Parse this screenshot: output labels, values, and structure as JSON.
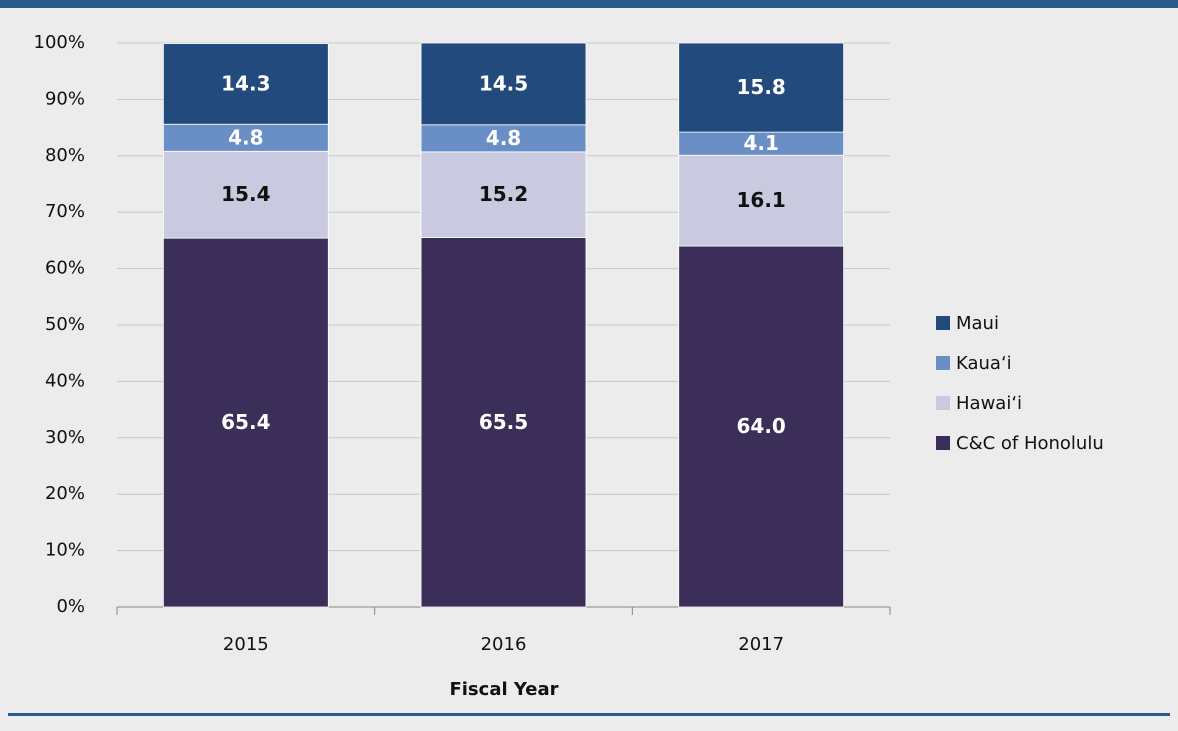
{
  "chart_data": {
    "type": "stacked_bar",
    "x_label": "Fiscal Year",
    "categories": [
      "2015",
      "2016",
      "2017"
    ],
    "series": [
      {
        "name": "C&C of Honolulu",
        "color": "#3b2f5a",
        "values": [
          65.4,
          65.5,
          64.0
        ],
        "value_labels": [
          "65.4",
          "65.5",
          "64.0"
        ]
      },
      {
        "name": "Hawai‘i",
        "color": "#c9cadf",
        "values": [
          15.4,
          15.2,
          16.1
        ]
      },
      {
        "name": "Kaua‘i",
        "color": "#6a8fc7",
        "values": [
          4.8,
          4.8,
          4.1
        ]
      },
      {
        "name": "Maui",
        "color": "#234a7c",
        "values": [
          14.3,
          14.5,
          15.8
        ]
      }
    ],
    "ylim": [
      0,
      100
    ],
    "yticks": [
      {
        "value": 0,
        "label": "0%"
      },
      {
        "value": 10,
        "label": "10%"
      },
      {
        "value": 20,
        "label": "20%"
      },
      {
        "value": 30,
        "label": "30%"
      },
      {
        "value": 40,
        "label": "40%"
      },
      {
        "value": 50,
        "label": "50%"
      },
      {
        "value": 60,
        "label": "60%"
      },
      {
        "value": 70,
        "label": "70%"
      },
      {
        "value": 80,
        "label": "80%"
      },
      {
        "value": 90,
        "label": "90%"
      },
      {
        "value": 100,
        "label": "100%"
      }
    ],
    "grid": true,
    "legend": "right"
  }
}
